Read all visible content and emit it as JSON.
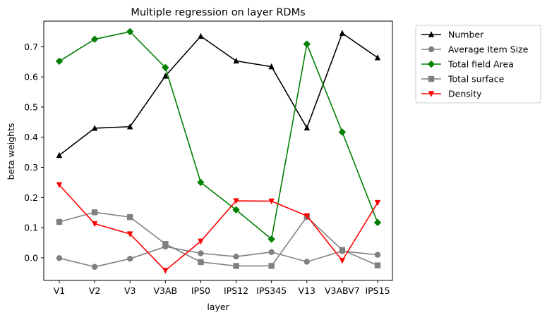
{
  "chart_data": {
    "type": "line",
    "title": "Multiple regression on layer RDMs",
    "xlabel": "layer",
    "ylabel": "beta weights",
    "categories": [
      "V1",
      "V2",
      "V3",
      "V3AB",
      "IPS0",
      "IPS12",
      "IPS345",
      "V13",
      "V3ABV7",
      "IPS15"
    ],
    "ylim": [
      -0.075,
      0.785
    ],
    "yticks": [
      "0.0",
      "0.1",
      "0.2",
      "0.3",
      "0.4",
      "0.5",
      "0.6",
      "0.7"
    ],
    "grid": false,
    "legend_position": "outside-right-top",
    "series": [
      {
        "name": "Number",
        "color": "#000000",
        "marker": "triangle-up",
        "values": [
          0.34,
          0.43,
          0.435,
          0.603,
          0.735,
          0.653,
          0.634,
          0.431,
          0.745,
          0.664
        ]
      },
      {
        "name": "Average Item Size",
        "color": "#808080",
        "marker": "circle",
        "values": [
          -0.001,
          -0.03,
          -0.003,
          0.037,
          0.015,
          0.004,
          0.019,
          -0.013,
          0.022,
          0.01
        ]
      },
      {
        "name": "Total field Area",
        "color": "#008000",
        "marker": "diamond",
        "values": [
          0.652,
          0.725,
          0.75,
          0.631,
          0.25,
          0.159,
          0.062,
          0.709,
          0.417,
          0.117
        ]
      },
      {
        "name": "Total surface",
        "color": "#808080",
        "marker": "square",
        "values": [
          0.119,
          0.151,
          0.135,
          0.046,
          -0.014,
          -0.027,
          -0.027,
          0.136,
          0.026,
          -0.025
        ]
      },
      {
        "name": "Density",
        "color": "#ff0000",
        "marker": "triangle-down",
        "values": [
          0.242,
          0.113,
          0.079,
          -0.042,
          0.055,
          0.189,
          0.188,
          0.139,
          -0.009,
          0.183
        ]
      }
    ]
  }
}
